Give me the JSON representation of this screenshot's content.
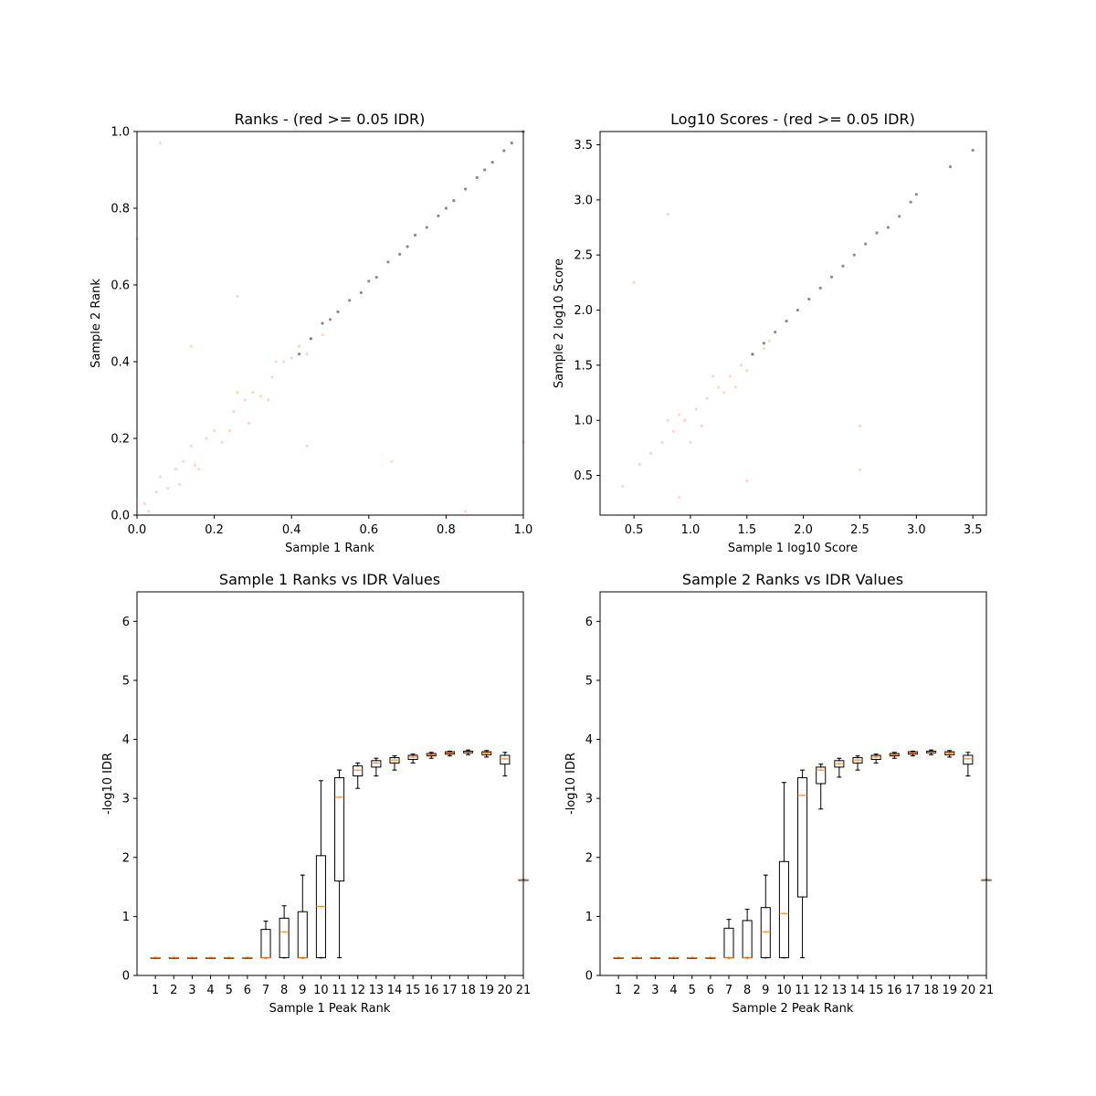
{
  "chart_data": [
    {
      "type": "scatter",
      "title": "Ranks - (red >= 0.05 IDR)",
      "xlabel": "Sample 1 Rank",
      "ylabel": "Sample 2 Rank",
      "xlim": [
        0,
        1
      ],
      "ylim": [
        0,
        1
      ],
      "xticks": [
        0.0,
        0.2,
        0.4,
        0.6,
        0.8,
        1.0
      ],
      "yticks": [
        0.0,
        0.2,
        0.4,
        0.6,
        0.8,
        1.0
      ],
      "xtick_labels": [
        "0.0",
        "0.2",
        "0.4",
        "0.6",
        "0.8",
        "1.0"
      ],
      "ytick_labels": [
        "0.0",
        "0.2",
        "0.4",
        "0.6",
        "0.8",
        "1.0"
      ],
      "grid": false,
      "colors": {
        "idr_ge_005": "#fa8d6e",
        "idr_lt_005": "#000000"
      },
      "series": [
        {
          "points": [
            [
              0.02,
              0.03
            ],
            [
              0.05,
              0.06
            ],
            [
              0.08,
              0.07
            ],
            [
              0.1,
              0.12
            ],
            [
              0.12,
              0.14
            ],
            [
              0.15,
              0.13
            ],
            [
              0.18,
              0.2
            ],
            [
              0.2,
              0.22
            ],
            [
              0.22,
              0.19
            ],
            [
              0.25,
              0.27
            ],
            [
              0.28,
              0.3
            ],
            [
              0.3,
              0.32
            ],
            [
              0.32,
              0.31
            ],
            [
              0.35,
              0.36
            ],
            [
              0.38,
              0.4
            ],
            [
              0.4,
              0.41
            ],
            [
              0.42,
              0.44
            ],
            [
              0.45,
              0.46
            ],
            [
              0.48,
              0.47
            ],
            [
              0.06,
              0.1
            ],
            [
              0.14,
              0.18
            ],
            [
              0.24,
              0.22
            ],
            [
              0.34,
              0.3
            ],
            [
              0.44,
              0.42
            ],
            [
              0.26,
              0.32
            ],
            [
              0.16,
              0.12
            ],
            [
              0.36,
              0.4
            ],
            [
              0.03,
              0.01
            ],
            [
              0.11,
              0.08
            ],
            [
              0.29,
              0.24
            ],
            [
              0.06,
              0.97
            ],
            [
              0.85,
              0.01
            ],
            [
              0.66,
              0.14
            ],
            [
              0.44,
              0.18
            ],
            [
              0.26,
              0.57
            ],
            [
              0.14,
              0.44
            ],
            [
              1.0,
              0.19
            ],
            [
              0.0,
              0.72
            ]
          ]
        },
        {
          "points": [
            [
              0.42,
              0.42
            ],
            [
              0.45,
              0.46
            ],
            [
              0.48,
              0.5
            ],
            [
              0.5,
              0.51
            ],
            [
              0.52,
              0.53
            ],
            [
              0.55,
              0.56
            ],
            [
              0.58,
              0.58
            ],
            [
              0.6,
              0.61
            ],
            [
              0.62,
              0.62
            ],
            [
              0.65,
              0.66
            ],
            [
              0.68,
              0.68
            ],
            [
              0.7,
              0.7
            ],
            [
              0.72,
              0.73
            ],
            [
              0.75,
              0.75
            ],
            [
              0.78,
              0.78
            ],
            [
              0.8,
              0.8
            ],
            [
              0.82,
              0.82
            ],
            [
              0.85,
              0.85
            ],
            [
              0.88,
              0.88
            ],
            [
              0.9,
              0.9
            ],
            [
              0.92,
              0.92
            ],
            [
              0.95,
              0.95
            ],
            [
              0.97,
              0.97
            ],
            [
              1.0,
              1.0
            ]
          ]
        }
      ]
    },
    {
      "type": "scatter",
      "title": "Log10 Scores - (red >= 0.05 IDR)",
      "xlabel": "Sample 1 log10 Score",
      "ylabel": "Sample 2 log10 Score",
      "xlim": [
        0.2,
        3.62
      ],
      "ylim": [
        0.14,
        3.62
      ],
      "xticks": [
        0.5,
        1.0,
        1.5,
        2.0,
        2.5,
        3.0,
        3.5
      ],
      "yticks": [
        0.5,
        1.0,
        1.5,
        2.0,
        2.5,
        3.0,
        3.5
      ],
      "xtick_labels": [
        "0.5",
        "1.0",
        "1.5",
        "2.0",
        "2.5",
        "3.0",
        "3.5"
      ],
      "ytick_labels": [
        "0.5",
        "1.0",
        "1.5",
        "2.0",
        "2.5",
        "3.0",
        "3.5"
      ],
      "grid": false,
      "colors": {
        "idr_ge_005": "#fa8d6e",
        "idr_lt_005": "#000000"
      },
      "series": [
        {
          "points": [
            [
              0.4,
              0.4
            ],
            [
              0.55,
              0.6
            ],
            [
              0.65,
              0.7
            ],
            [
              0.75,
              0.8
            ],
            [
              0.85,
              0.9
            ],
            [
              0.95,
              1.0
            ],
            [
              1.05,
              1.1
            ],
            [
              1.15,
              1.2
            ],
            [
              1.25,
              1.3
            ],
            [
              1.35,
              1.4
            ],
            [
              1.45,
              1.5
            ],
            [
              1.55,
              1.6
            ],
            [
              1.65,
              1.65
            ],
            [
              1.7,
              1.72
            ],
            [
              0.9,
              1.05
            ],
            [
              1.1,
              0.95
            ],
            [
              1.3,
              1.25
            ],
            [
              1.2,
              1.4
            ],
            [
              1.4,
              1.3
            ],
            [
              1.0,
              0.8
            ],
            [
              0.8,
              1.0
            ],
            [
              1.5,
              1.45
            ],
            [
              0.5,
              2.25
            ],
            [
              0.8,
              2.87
            ],
            [
              0.9,
              0.3
            ],
            [
              1.5,
              0.45
            ],
            [
              2.5,
              0.55
            ],
            [
              2.5,
              0.95
            ]
          ]
        },
        {
          "points": [
            [
              1.55,
              1.6
            ],
            [
              1.65,
              1.7
            ],
            [
              1.75,
              1.8
            ],
            [
              1.85,
              1.9
            ],
            [
              1.95,
              2.0
            ],
            [
              2.05,
              2.1
            ],
            [
              2.15,
              2.2
            ],
            [
              2.25,
              2.3
            ],
            [
              2.35,
              2.4
            ],
            [
              2.45,
              2.5
            ],
            [
              2.55,
              2.6
            ],
            [
              2.65,
              2.7
            ],
            [
              2.75,
              2.75
            ],
            [
              2.85,
              2.85
            ],
            [
              2.95,
              2.98
            ],
            [
              3.0,
              3.05
            ],
            [
              3.3,
              3.3
            ],
            [
              3.5,
              3.45
            ]
          ]
        }
      ]
    },
    {
      "type": "box",
      "title": "Sample 1 Ranks vs IDR Values",
      "xlabel": "Sample 1 Peak Rank",
      "ylabel": "-log10 IDR",
      "xlim": [
        0,
        21
      ],
      "ylim": [
        0,
        6.5
      ],
      "xtick_labels": [
        "1",
        "2",
        "3",
        "4",
        "5",
        "6",
        "7",
        "8",
        "9",
        "10",
        "11",
        "12",
        "13",
        "14",
        "15",
        "16",
        "17",
        "18",
        "19",
        "20",
        "21"
      ],
      "ytick_labels": [
        "0",
        "1",
        "2",
        "3",
        "4",
        "5",
        "6"
      ],
      "grid": false,
      "colors": {
        "box": "#000000",
        "median": "#ff7f0e",
        "points": "#666666"
      },
      "boxes": [
        {
          "pos": 1,
          "wlo": 0.3,
          "q1": 0.3,
          "med": 0.3,
          "q3": 0.3,
          "whi": 0.3
        },
        {
          "pos": 2,
          "wlo": 0.3,
          "q1": 0.3,
          "med": 0.3,
          "q3": 0.3,
          "whi": 0.3
        },
        {
          "pos": 3,
          "wlo": 0.3,
          "q1": 0.3,
          "med": 0.3,
          "q3": 0.3,
          "whi": 0.3
        },
        {
          "pos": 4,
          "wlo": 0.3,
          "q1": 0.3,
          "med": 0.3,
          "q3": 0.3,
          "whi": 0.3
        },
        {
          "pos": 5,
          "wlo": 0.3,
          "q1": 0.3,
          "med": 0.3,
          "q3": 0.3,
          "whi": 0.3
        },
        {
          "pos": 6,
          "wlo": 0.3,
          "q1": 0.3,
          "med": 0.3,
          "q3": 0.3,
          "whi": 0.3
        },
        {
          "pos": 7,
          "wlo": 0.3,
          "q1": 0.3,
          "med": 0.3,
          "q3": 0.78,
          "whi": 0.92
        },
        {
          "pos": 8,
          "wlo": 0.3,
          "q1": 0.3,
          "med": 0.74,
          "q3": 0.97,
          "whi": 1.18
        },
        {
          "pos": 9,
          "wlo": 0.3,
          "q1": 0.3,
          "med": 0.3,
          "q3": 1.08,
          "whi": 1.7
        },
        {
          "pos": 10,
          "wlo": 0.3,
          "q1": 0.3,
          "med": 1.17,
          "q3": 2.03,
          "whi": 3.3
        },
        {
          "pos": 11,
          "wlo": 0.3,
          "q1": 1.6,
          "med": 3.02,
          "q3": 3.35,
          "whi": 3.48
        },
        {
          "pos": 12,
          "wlo": 3.17,
          "q1": 3.38,
          "med": 3.48,
          "q3": 3.55,
          "whi": 3.6
        },
        {
          "pos": 13,
          "wlo": 3.38,
          "q1": 3.53,
          "med": 3.6,
          "q3": 3.64,
          "whi": 3.68
        },
        {
          "pos": 14,
          "wlo": 3.48,
          "q1": 3.6,
          "med": 3.65,
          "q3": 3.69,
          "whi": 3.72
        },
        {
          "pos": 15,
          "wlo": 3.6,
          "q1": 3.66,
          "med": 3.7,
          "q3": 3.73,
          "whi": 3.75
        },
        {
          "pos": 16,
          "wlo": 3.68,
          "q1": 3.72,
          "med": 3.74,
          "q3": 3.76,
          "whi": 3.78
        },
        {
          "pos": 17,
          "wlo": 3.72,
          "q1": 3.75,
          "med": 3.77,
          "q3": 3.79,
          "whi": 3.8
        },
        {
          "pos": 18,
          "wlo": 3.74,
          "q1": 3.77,
          "med": 3.78,
          "q3": 3.8,
          "whi": 3.82
        },
        {
          "pos": 19,
          "wlo": 3.7,
          "q1": 3.74,
          "med": 3.77,
          "q3": 3.79,
          "whi": 3.81
        },
        {
          "pos": 20,
          "wlo": 3.38,
          "q1": 3.58,
          "med": 3.67,
          "q3": 3.73,
          "whi": 3.78
        },
        {
          "pos": 21,
          "wlo": 1.62,
          "q1": 1.62,
          "med": 1.62,
          "q3": 1.62,
          "whi": 1.62
        }
      ]
    },
    {
      "type": "box",
      "title": "Sample 2 Ranks vs IDR Values",
      "xlabel": "Sample 2 Peak Rank",
      "ylabel": "-log10 IDR",
      "xlim": [
        0,
        21
      ],
      "ylim": [
        0,
        6.5
      ],
      "xtick_labels": [
        "1",
        "2",
        "3",
        "4",
        "5",
        "6",
        "7",
        "8",
        "9",
        "10",
        "11",
        "12",
        "13",
        "14",
        "15",
        "16",
        "17",
        "18",
        "19",
        "20",
        "21"
      ],
      "ytick_labels": [
        "0",
        "1",
        "2",
        "3",
        "4",
        "5",
        "6"
      ],
      "grid": false,
      "colors": {
        "box": "#000000",
        "median": "#ff7f0e",
        "points": "#666666"
      },
      "boxes": [
        {
          "pos": 1,
          "wlo": 0.3,
          "q1": 0.3,
          "med": 0.3,
          "q3": 0.3,
          "whi": 0.3
        },
        {
          "pos": 2,
          "wlo": 0.3,
          "q1": 0.3,
          "med": 0.3,
          "q3": 0.3,
          "whi": 0.3
        },
        {
          "pos": 3,
          "wlo": 0.3,
          "q1": 0.3,
          "med": 0.3,
          "q3": 0.3,
          "whi": 0.3
        },
        {
          "pos": 4,
          "wlo": 0.3,
          "q1": 0.3,
          "med": 0.3,
          "q3": 0.3,
          "whi": 0.3
        },
        {
          "pos": 5,
          "wlo": 0.3,
          "q1": 0.3,
          "med": 0.3,
          "q3": 0.3,
          "whi": 0.3
        },
        {
          "pos": 6,
          "wlo": 0.3,
          "q1": 0.3,
          "med": 0.3,
          "q3": 0.3,
          "whi": 0.3
        },
        {
          "pos": 7,
          "wlo": 0.3,
          "q1": 0.3,
          "med": 0.3,
          "q3": 0.8,
          "whi": 0.95
        },
        {
          "pos": 8,
          "wlo": 0.3,
          "q1": 0.3,
          "med": 0.3,
          "q3": 0.93,
          "whi": 1.12
        },
        {
          "pos": 9,
          "wlo": 0.3,
          "q1": 0.3,
          "med": 0.74,
          "q3": 1.15,
          "whi": 1.7
        },
        {
          "pos": 10,
          "wlo": 0.3,
          "q1": 0.3,
          "med": 1.05,
          "q3": 1.93,
          "whi": 3.27
        },
        {
          "pos": 11,
          "wlo": 0.3,
          "q1": 1.33,
          "med": 3.05,
          "q3": 3.35,
          "whi": 3.48
        },
        {
          "pos": 12,
          "wlo": 2.82,
          "q1": 3.25,
          "med": 3.48,
          "q3": 3.53,
          "whi": 3.58
        },
        {
          "pos": 13,
          "wlo": 3.36,
          "q1": 3.53,
          "med": 3.59,
          "q3": 3.64,
          "whi": 3.68
        },
        {
          "pos": 14,
          "wlo": 3.48,
          "q1": 3.6,
          "med": 3.65,
          "q3": 3.69,
          "whi": 3.72
        },
        {
          "pos": 15,
          "wlo": 3.6,
          "q1": 3.66,
          "med": 3.7,
          "q3": 3.73,
          "whi": 3.75
        },
        {
          "pos": 16,
          "wlo": 3.68,
          "q1": 3.72,
          "med": 3.74,
          "q3": 3.76,
          "whi": 3.78
        },
        {
          "pos": 17,
          "wlo": 3.72,
          "q1": 3.75,
          "med": 3.77,
          "q3": 3.79,
          "whi": 3.8
        },
        {
          "pos": 18,
          "wlo": 3.74,
          "q1": 3.77,
          "med": 3.78,
          "q3": 3.8,
          "whi": 3.82
        },
        {
          "pos": 19,
          "wlo": 3.7,
          "q1": 3.74,
          "med": 3.77,
          "q3": 3.79,
          "whi": 3.81
        },
        {
          "pos": 20,
          "wlo": 3.38,
          "q1": 3.58,
          "med": 3.67,
          "q3": 3.73,
          "whi": 3.78
        },
        {
          "pos": 21,
          "wlo": 1.62,
          "q1": 1.62,
          "med": 1.62,
          "q3": 1.62,
          "whi": 1.62
        }
      ]
    }
  ]
}
